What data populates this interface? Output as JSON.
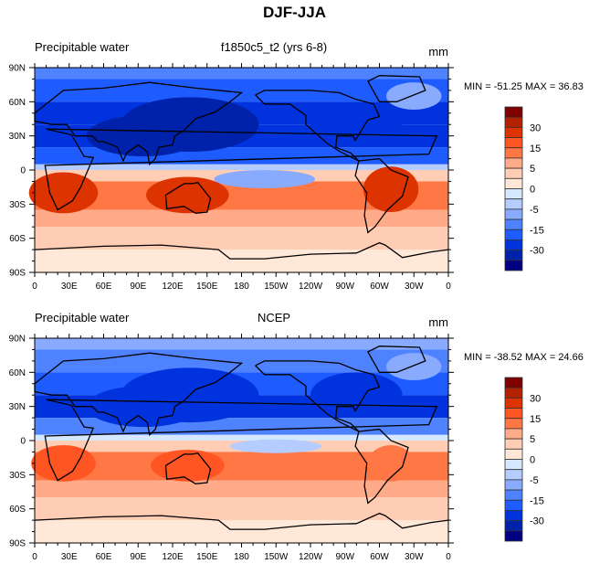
{
  "title": "DJF-JJA",
  "chart_data": [
    {
      "type": "heatmap",
      "title": "DJF-JJA",
      "left_title": "Precipitable water",
      "center_title": "f1850c5_t2 (yrs 6-8)",
      "units": "mm",
      "min_label": "MIN = -51.25 MAX =  36.83",
      "min": -51.25,
      "max": 36.83,
      "projection": "cylindrical-equidistant",
      "xlim": [
        0,
        360
      ],
      "ylim": [
        -90,
        90
      ],
      "x_ticks": [
        "0",
        "30E",
        "60E",
        "90E",
        "120E",
        "150E",
        "180",
        "150W",
        "120W",
        "90W",
        "60W",
        "30W",
        "0"
      ],
      "y_ticks": [
        "90N",
        "60N",
        "30N",
        "0",
        "30S",
        "60S",
        "90S"
      ],
      "levels": [
        40,
        30,
        20,
        15,
        10,
        5,
        2,
        0,
        -2,
        -5,
        -10,
        -15,
        -20,
        -30,
        -40
      ],
      "colorbar_labels": [
        "30",
        "15",
        "5",
        "0",
        "-5",
        "-15",
        "-30"
      ],
      "colors": [
        "#7f0000",
        "#b22200",
        "#dd3300",
        "#ff5522",
        "#ff7744",
        "#ffaa88",
        "#ffccb4",
        "#ffe8d8",
        "#d6e8ff",
        "#b4ccff",
        "#88aaff",
        "#4f82ff",
        "#1e5cff",
        "#0033dd",
        "#0022aa",
        "#000080"
      ],
      "pattern_note": "Negative (blue) north of ~5N, positive (red) south; strongest minima over South/East Asia, maxima over southern Africa, Australia, South America",
      "bands": [
        {
          "lat_range": [
            80,
            90
          ],
          "value": -10
        },
        {
          "lat_range": [
            60,
            80
          ],
          "value": -15
        },
        {
          "lat_range": [
            40,
            60
          ],
          "value": -20
        },
        {
          "lat_range": [
            20,
            40
          ],
          "value": -25
        },
        {
          "lat_range": [
            5,
            20
          ],
          "value": -15
        },
        {
          "lat_range": [
            0,
            5
          ],
          "value": -3
        },
        {
          "lat_range": [
            -10,
            0
          ],
          "value": 4
        },
        {
          "lat_range": [
            -35,
            -10
          ],
          "value": 15
        },
        {
          "lat_range": [
            -50,
            -35
          ],
          "value": 8
        },
        {
          "lat_range": [
            -70,
            -50
          ],
          "value": 4
        },
        {
          "lat_range": [
            -90,
            -70
          ],
          "value": 1
        }
      ]
    },
    {
      "type": "heatmap",
      "title": "DJF-JJA",
      "left_title": "Precipitable water",
      "center_title": "NCEP",
      "units": "mm",
      "min_label": "MIN = -38.52 MAX =  24.66",
      "min": -38.52,
      "max": 24.66,
      "projection": "cylindrical-equidistant",
      "xlim": [
        0,
        360
      ],
      "ylim": [
        -90,
        90
      ],
      "x_ticks": [
        "0",
        "30E",
        "60E",
        "90E",
        "120E",
        "150E",
        "180",
        "150W",
        "120W",
        "90W",
        "60W",
        "30W",
        "0"
      ],
      "y_ticks": [
        "90N",
        "60N",
        "30N",
        "0",
        "30S",
        "60S",
        "90S"
      ],
      "levels": [
        40,
        30,
        20,
        15,
        10,
        5,
        2,
        0,
        -2,
        -5,
        -10,
        -15,
        -20,
        -30,
        -40
      ],
      "colorbar_labels": [
        "30",
        "15",
        "5",
        "0",
        "-5",
        "-15",
        "-30"
      ],
      "colors": [
        "#7f0000",
        "#b22200",
        "#dd3300",
        "#ff5522",
        "#ff7744",
        "#ffaa88",
        "#ffccb4",
        "#ffe8d8",
        "#d6e8ff",
        "#b4ccff",
        "#88aaff",
        "#4f82ff",
        "#1e5cff",
        "#0033dd",
        "#0022aa",
        "#000080"
      ],
      "pattern_note": "Similar pattern with weaker amplitude",
      "bands": [
        {
          "lat_range": [
            80,
            90
          ],
          "value": -8
        },
        {
          "lat_range": [
            60,
            80
          ],
          "value": -12
        },
        {
          "lat_range": [
            40,
            60
          ],
          "value": -16
        },
        {
          "lat_range": [
            20,
            40
          ],
          "value": -20
        },
        {
          "lat_range": [
            5,
            20
          ],
          "value": -12
        },
        {
          "lat_range": [
            0,
            5
          ],
          "value": -1
        },
        {
          "lat_range": [
            -10,
            0
          ],
          "value": 3
        },
        {
          "lat_range": [
            -35,
            -10
          ],
          "value": 12
        },
        {
          "lat_range": [
            -50,
            -35
          ],
          "value": 7
        },
        {
          "lat_range": [
            -70,
            -50
          ],
          "value": 4
        },
        {
          "lat_range": [
            -90,
            -70
          ],
          "value": 1
        }
      ]
    }
  ]
}
